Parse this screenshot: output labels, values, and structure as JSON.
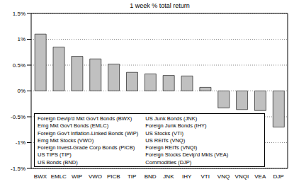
{
  "chart_data": {
    "type": "bar",
    "title": "1 week % total return",
    "categories": [
      "BWX",
      "EMLC",
      "WIP",
      "VWO",
      "PICB",
      "TIP",
      "BND",
      "JNK",
      "IHY",
      "VTI",
      "VNQ",
      "VNQI",
      "VEA",
      "DJP"
    ],
    "values": [
      1.1,
      0.85,
      0.67,
      0.62,
      0.52,
      0.36,
      0.33,
      0.3,
      0.29,
      0.07,
      -0.33,
      -0.36,
      -0.38,
      -0.7
    ],
    "color": "#c0c0c0",
    "ylim": [
      -1.5,
      1.5
    ],
    "yticks": [
      {
        "value": -1.5,
        "label": "-1.5%"
      },
      {
        "value": -1,
        "label": "-1%"
      },
      {
        "value": -0.5,
        "label": "-0.5%"
      },
      {
        "value": 0,
        "label": "0%"
      },
      {
        "value": 0.5,
        "label": "0.5%"
      },
      {
        "value": 1,
        "label": "1%"
      },
      {
        "value": 1.5,
        "label": "1.5%"
      }
    ],
    "grid": true,
    "annotations": [
      "Foreign Devlp'd Mkt Gov't Bonds (BWX)",
      "Emg Mkt Gov't Bonds (EMLC)",
      "Foreign Gov't Inflation-Linked Bonds (WIP)",
      "Emg Mkt Stocks (VWO)",
      "Foreign Invest-Grade Corp Bonds (PICB)",
      "US TIPS (TIP)",
      "US Bonds (BND)",
      "US Junk Bonds (JNK)",
      "Foreign Junk Bonds (IHY)",
      "US Stocks (VTI)",
      "US REITs (VNQ)",
      "Foreign REITs (VNQI)",
      "Foreign Stocks Devlp'd Mkts (VEA)",
      "Commodities (DJP)"
    ]
  }
}
